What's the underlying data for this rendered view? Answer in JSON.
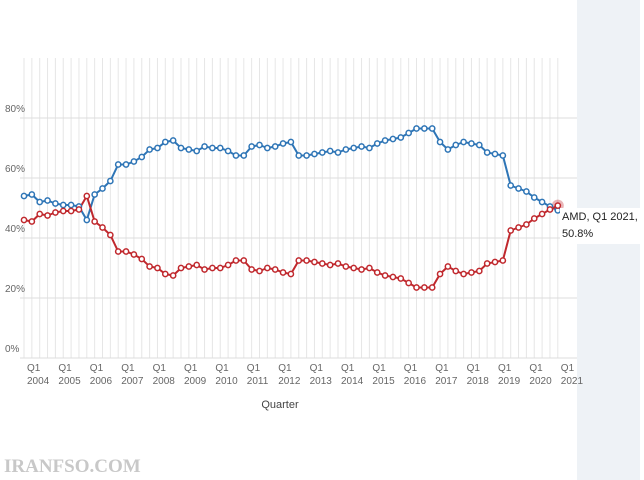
{
  "chart_data": {
    "type": "line",
    "x_axis_label": "Quarter",
    "categories": [
      "Q1 2004",
      null,
      null,
      null,
      "Q1 2005",
      null,
      null,
      null,
      "Q1 2006",
      null,
      null,
      null,
      "Q1 2007",
      null,
      null,
      null,
      "Q1 2008",
      null,
      null,
      null,
      "Q1 2009",
      null,
      null,
      null,
      "Q1 2010",
      null,
      null,
      null,
      "Q1 2011",
      null,
      null,
      null,
      "Q1 2012",
      null,
      null,
      null,
      "Q1 2013",
      null,
      null,
      null,
      "Q1 2014",
      null,
      null,
      null,
      "Q1 2015",
      null,
      null,
      null,
      "Q1 2016",
      null,
      null,
      null,
      "Q1 2017",
      null,
      null,
      null,
      "Q1 2018",
      null,
      null,
      null,
      "Q1 2019",
      null,
      null,
      null,
      "Q1 2020",
      null,
      null,
      null,
      "Q1 2021"
    ],
    "series": [
      {
        "color": "#2e75b6",
        "values": [
          54,
          54.5,
          52,
          52.5,
          51.5,
          51,
          51,
          50.5,
          46,
          54.5,
          56.5,
          59,
          64.5,
          64.5,
          65.5,
          67,
          69.5,
          70,
          72,
          72.5,
          70,
          69.5,
          69,
          70.5,
          70,
          70,
          69,
          67.5,
          67.5,
          70.5,
          71,
          70,
          70.5,
          71.5,
          72,
          67.5,
          67.5,
          68,
          68.5,
          69,
          68.5,
          69.5,
          70,
          70.5,
          70,
          71.5,
          72.5,
          73,
          73.5,
          75,
          76.5,
          76.5,
          76.5,
          72,
          69.5,
          71,
          72,
          71.5,
          71,
          68.5,
          68,
          67.5,
          57.5,
          56.5,
          55.5,
          53.5,
          52,
          50.5,
          49.2
        ]
      },
      {
        "name": "AMD",
        "color": "#c0282d",
        "values": [
          46,
          45.5,
          48,
          47.5,
          48.5,
          49,
          49,
          49.5,
          54,
          45.5,
          43.5,
          41,
          35.5,
          35.5,
          34.5,
          33,
          30.5,
          30,
          28,
          27.5,
          30,
          30.5,
          31,
          29.5,
          30,
          30,
          31,
          32.5,
          32.5,
          29.5,
          29,
          30,
          29.5,
          28.5,
          28,
          32.5,
          32.5,
          32,
          31.5,
          31,
          31.5,
          30.5,
          30,
          29.5,
          30,
          28.5,
          27.5,
          27,
          26.5,
          25,
          23.5,
          23.5,
          23.5,
          28,
          30.5,
          29,
          28,
          28.5,
          29,
          31.5,
          32,
          32.5,
          42.5,
          43.5,
          44.5,
          46.5,
          48,
          49.5,
          50.8
        ]
      }
    ],
    "tooltip": {
      "series": 1,
      "index": 68,
      "label": "AMD, Q1 2021, 50.8%"
    },
    "ylim": [
      0,
      100
    ],
    "yticks": [
      {
        "value": 0,
        "label": "0%"
      },
      {
        "value": 20,
        "label": "20%"
      },
      {
        "value": 40,
        "label": "40%"
      },
      {
        "value": 60,
        "label": "60%"
      },
      {
        "value": 80,
        "label": "80%"
      }
    ],
    "grid": true
  },
  "watermark": "IRANFSO.COM"
}
